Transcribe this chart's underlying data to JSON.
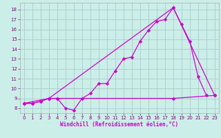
{
  "bg_color": "#cceee8",
  "grid_color": "#aacccc",
  "line_color": "#cc00cc",
  "xlabel": "Windchill (Refroidissement éolien,°C)",
  "xlim": [
    -0.5,
    23.5
  ],
  "ylim": [
    7.5,
    18.7
  ],
  "xticks": [
    0,
    1,
    2,
    3,
    4,
    5,
    6,
    7,
    8,
    9,
    10,
    11,
    12,
    13,
    14,
    15,
    16,
    17,
    18,
    19,
    20,
    21,
    22,
    23
  ],
  "yticks": [
    8,
    9,
    10,
    11,
    12,
    13,
    14,
    15,
    16,
    17,
    18
  ],
  "line1_x": [
    0,
    1,
    2,
    3,
    4,
    5,
    6,
    7,
    8,
    9,
    10,
    11,
    12,
    13,
    14,
    15,
    16,
    17,
    18,
    19,
    20,
    21,
    22
  ],
  "line1_y": [
    8.5,
    8.5,
    8.7,
    9.0,
    9.0,
    8.0,
    7.8,
    9.0,
    9.5,
    10.5,
    10.5,
    11.8,
    13.0,
    13.2,
    14.8,
    15.9,
    16.8,
    17.0,
    18.2,
    16.5,
    14.8,
    11.2,
    9.3
  ],
  "line2_x": [
    0,
    1,
    2,
    3,
    4,
    18,
    23
  ],
  "line2_y": [
    8.5,
    8.5,
    8.7,
    9.0,
    9.0,
    9.0,
    9.3
  ],
  "line3_x": [
    0,
    3,
    18,
    23
  ],
  "line3_y": [
    8.5,
    9.0,
    18.2,
    9.3
  ],
  "marker": "D",
  "markersize": 2.5,
  "linewidth": 0.9,
  "xlabel_fontsize": 5.5,
  "tick_fontsize": 5.0
}
